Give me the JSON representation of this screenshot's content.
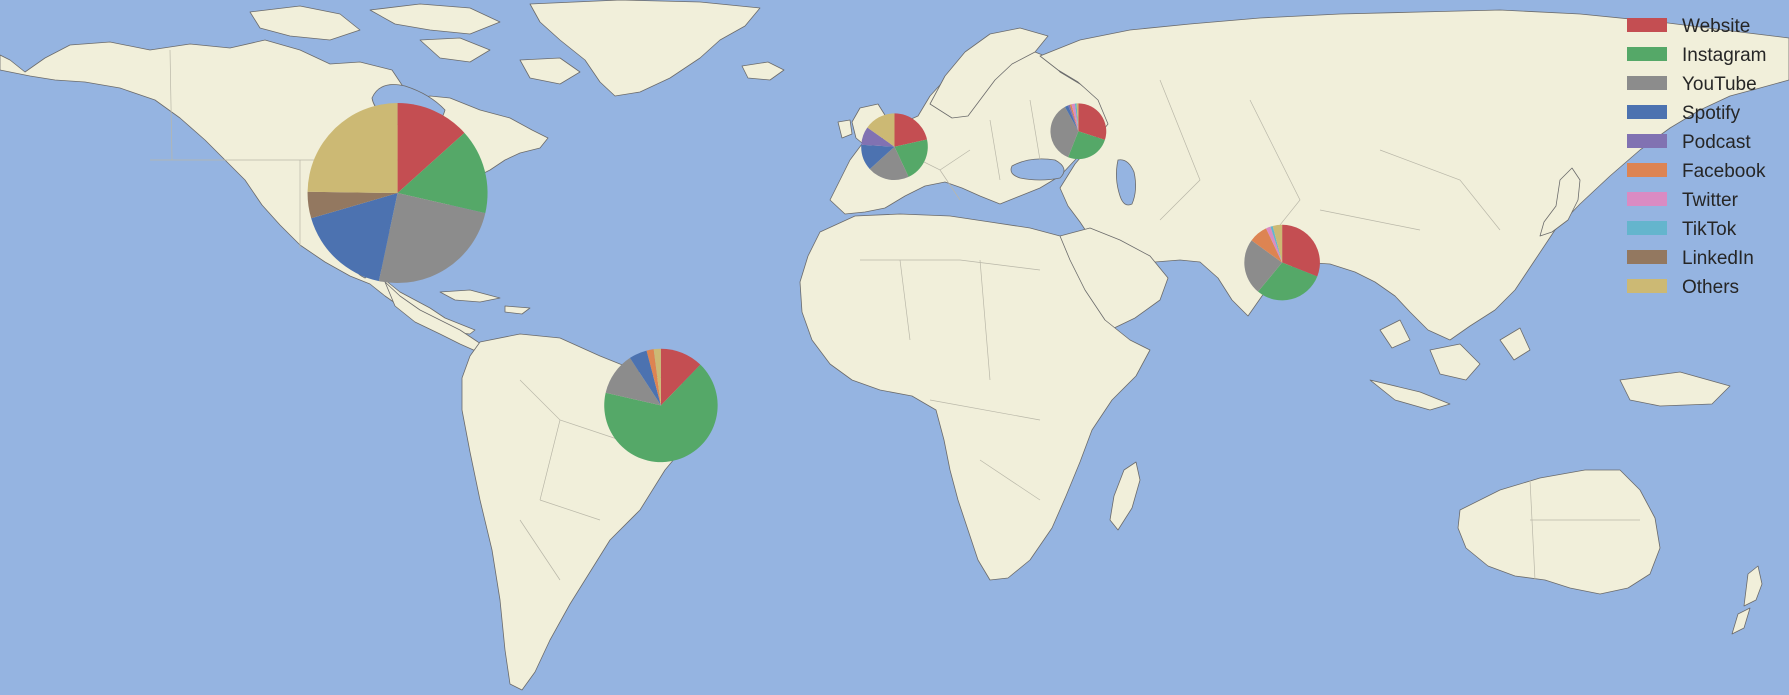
{
  "colors": {
    "ocean": "#95b4e1",
    "land": "#f1efda",
    "coast": "#6b6b6b"
  },
  "legend": {
    "placement": "top-right",
    "items": [
      {
        "label": "Website",
        "color": "#c44e52"
      },
      {
        "label": "Instagram",
        "color": "#55a868"
      },
      {
        "label": "YouTube",
        "color": "#8c8c8c"
      },
      {
        "label": "Spotify",
        "color": "#4c72b0"
      },
      {
        "label": "Podcast",
        "color": "#8172b2"
      },
      {
        "label": "Facebook",
        "color": "#dd8452"
      },
      {
        "label": "Twitter",
        "color": "#da8bc3"
      },
      {
        "label": "TikTok",
        "color": "#64b5cd"
      },
      {
        "label": "LinkedIn",
        "color": "#937860"
      },
      {
        "label": "Others",
        "color": "#ccb974"
      }
    ]
  },
  "chart_data": {
    "type": "pie",
    "categories": [
      "Website",
      "Instagram",
      "YouTube",
      "Spotify",
      "Podcast",
      "Facebook",
      "Twitter",
      "TikTok",
      "LinkedIn",
      "Others"
    ],
    "pies": [
      {
        "region": "North America",
        "lon": -100,
        "lat": 40,
        "size": 1.0,
        "values": [
          14,
          16,
          26,
          18,
          0,
          0,
          0,
          0,
          5,
          26
        ]
      },
      {
        "region": "South America",
        "lon": -47,
        "lat": -15,
        "size": 0.63,
        "values": [
          12,
          65,
          12,
          5,
          0,
          2,
          0,
          0,
          0,
          2
        ]
      },
      {
        "region": "Western Europe",
        "lon": 0,
        "lat": 52,
        "size": 0.37,
        "values": [
          17,
          17,
          16,
          10,
          7,
          0,
          0,
          0,
          0,
          12
        ]
      },
      {
        "region": "Eastern Europe",
        "lon": 37,
        "lat": 56,
        "size": 0.31,
        "values": [
          30,
          26,
          36,
          2,
          1,
          1,
          2,
          1,
          0,
          1
        ]
      },
      {
        "region": "India",
        "lon": 78,
        "lat": 22,
        "size": 0.42,
        "values": [
          31,
          30,
          24,
          0,
          0,
          8,
          2,
          1,
          0,
          4
        ]
      }
    ]
  }
}
